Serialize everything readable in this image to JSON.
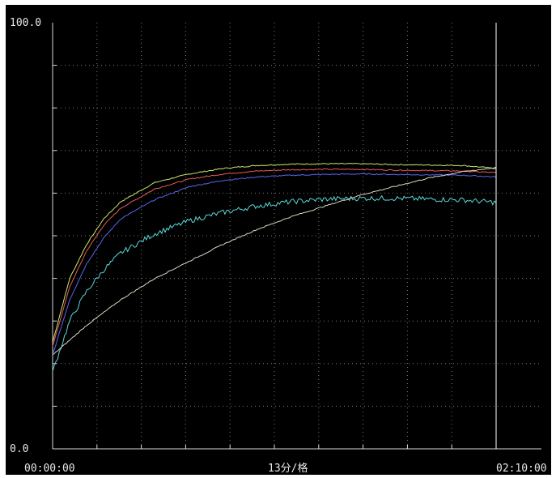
{
  "colors": {
    "background": "#000000",
    "frame": "#ffffff",
    "axis": "#d8d8d8",
    "grid": "#7a7a7a",
    "text": "#e8e8e8"
  },
  "chart_data": {
    "type": "line",
    "title": "",
    "xlabel": "13分/格",
    "ylabel": "",
    "xlim_minutes": [
      0,
      130
    ],
    "ylim": [
      0.0,
      100.0
    ],
    "x_tick_labels": [
      "00:00:00",
      "02:10:00"
    ],
    "y_tick_labels": [
      "100.0",
      "0.0"
    ],
    "x_major_step_minutes": 13,
    "y_major_step": 10,
    "grid": true,
    "cursor_line_at_minutes": 130,
    "series": [
      {
        "color": "#c8e86a",
        "x_minutes": [
          0,
          5,
          10,
          15,
          20,
          30,
          40,
          50,
          60,
          70,
          80,
          90,
          100,
          110,
          120,
          130
        ],
        "values": [
          25,
          40,
          48,
          54,
          58,
          62.5,
          64.5,
          65.8,
          66.5,
          66.8,
          66.9,
          66.9,
          66.7,
          66.6,
          66.5,
          65.8
        ]
      },
      {
        "color": "#e85a5a",
        "x_minutes": [
          0,
          5,
          10,
          15,
          20,
          30,
          40,
          50,
          60,
          70,
          80,
          90,
          100,
          110,
          120,
          130
        ],
        "values": [
          24,
          38,
          46.5,
          52.5,
          56.5,
          61.0,
          63.3,
          64.5,
          65.2,
          65.5,
          65.6,
          65.6,
          65.4,
          65.3,
          65.2,
          64.8
        ]
      },
      {
        "color": "#5a66ee",
        "x_minutes": [
          0,
          5,
          10,
          15,
          20,
          30,
          40,
          50,
          60,
          70,
          80,
          90,
          100,
          110,
          120,
          130
        ],
        "values": [
          22,
          35,
          43.5,
          49.5,
          54,
          58.5,
          61.5,
          63.0,
          63.8,
          64.2,
          64.4,
          64.5,
          64.4,
          64.3,
          64.2,
          63.8
        ]
      },
      {
        "color": "#5ad8d8",
        "noisy": true,
        "x_minutes": [
          0,
          5,
          10,
          15,
          20,
          30,
          40,
          50,
          60,
          70,
          80,
          90,
          100,
          110,
          120,
          130
        ],
        "values": [
          18,
          30,
          37,
          42,
          46,
          50.5,
          53.5,
          55.5,
          57.0,
          58.0,
          58.6,
          58.8,
          58.8,
          58.6,
          58.4,
          57.8
        ]
      },
      {
        "color": "#d8d8c0",
        "x_minutes": [
          0,
          10,
          20,
          30,
          40,
          50,
          60,
          70,
          80,
          90,
          100,
          110,
          120,
          130
        ],
        "values": [
          22,
          29,
          35,
          40,
          44,
          48,
          51.5,
          54.5,
          57,
          59.5,
          61.5,
          63.5,
          65,
          66
        ]
      }
    ]
  }
}
